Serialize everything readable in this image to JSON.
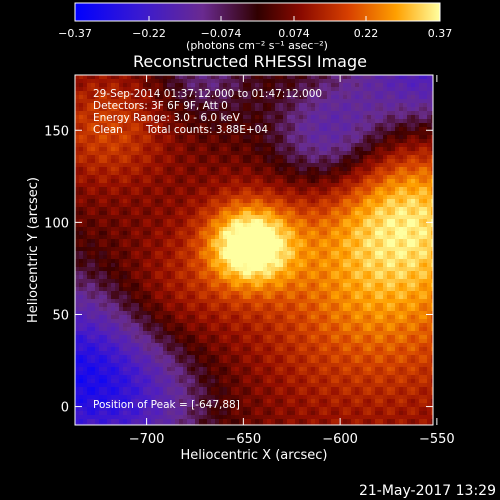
{
  "chart_data": {
    "type": "heatmap",
    "title": "Reconstructed RHESSI Image",
    "xlabel": "Heliocentric X (arcsec)",
    "ylabel": "Heliocentric Y (arcsec)",
    "xlim": [
      -737,
      -552
    ],
    "ylim": [
      -10,
      180
    ],
    "x_ticks": [
      -700,
      -650,
      -600,
      -550
    ],
    "x_tick_labels": [
      "−700",
      "−650",
      "−600",
      "−550"
    ],
    "y_ticks": [
      0,
      50,
      100,
      150
    ],
    "y_tick_labels": [
      "0",
      "50",
      "100",
      "150"
    ],
    "colorbar": {
      "range": [
        -0.37,
        0.37
      ],
      "ticks": [
        -0.37,
        -0.22,
        -0.074,
        0.074,
        0.22,
        0.37
      ],
      "tick_labels": [
        "−0.37",
        "−0.22",
        "−0.074",
        "0.074",
        "0.22",
        "0.37"
      ],
      "units_label": "(photons cm⁻² s⁻¹ asec⁻²)"
    },
    "annotations": [
      "29-Sep-2014 01:37:12.000 to 01:47:12.000",
      "Detectors: 3F 6F 9F, Att 0",
      "Energy Range: 3.0 - 6.0 keV",
      "Clean",
      "Total counts: 3.88E+04"
    ],
    "peak_position_label": "Position of Peak = [-647,88]",
    "peak_position": [
      -647,
      88
    ],
    "footer_date": "21-May-2017 13:29",
    "colors": {
      "neg_max": "#0000ff",
      "neg_mid": "#7a30b0",
      "zero": "#300000",
      "mid": "#c03000",
      "high": "#ff9000",
      "max": "#ffff90"
    }
  }
}
